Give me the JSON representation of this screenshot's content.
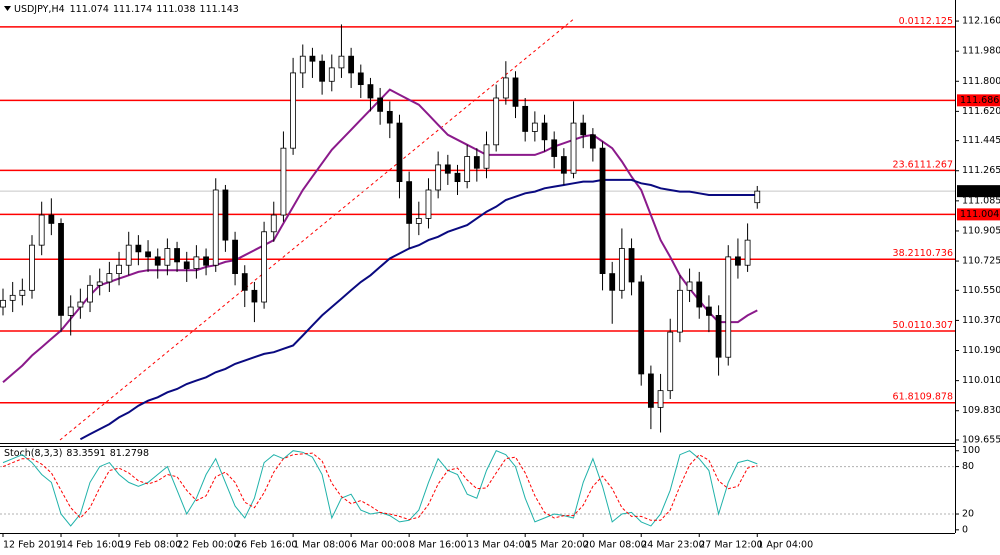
{
  "chart_data": [
    {
      "type": "candlestick",
      "title": "USDJPY,H4",
      "header_values": [
        111.074,
        111.174,
        111.038,
        111.143
      ],
      "categories": [
        "12 Feb 2019",
        null,
        null,
        null,
        null,
        null,
        "14 Feb 16:00",
        null,
        null,
        null,
        null,
        null,
        "19 Feb 08:00",
        null,
        null,
        null,
        null,
        null,
        "22 Feb 00:00",
        null,
        null,
        null,
        null,
        null,
        "26 Feb 16:00",
        null,
        null,
        null,
        null,
        null,
        "1 Mar 08:00",
        null,
        null,
        null,
        null,
        null,
        "6 Mar 00:00",
        null,
        null,
        null,
        null,
        null,
        "8 Mar 16:00",
        null,
        null,
        null,
        null,
        null,
        "13 Mar 04:00",
        null,
        null,
        null,
        null,
        null,
        "15 Mar 20:00",
        null,
        null,
        null,
        null,
        null,
        "20 Mar 08:00",
        null,
        null,
        null,
        null,
        null,
        "24 Mar 23:00",
        null,
        null,
        null,
        null,
        null,
        "27 Mar 12:00",
        null,
        null,
        null,
        null,
        null,
        "1 Apr 04:00"
      ],
      "open": [
        110.45,
        110.49,
        110.52,
        110.55,
        110.82,
        111.0,
        110.95,
        110.4,
        110.45,
        110.48,
        110.58,
        110.6,
        110.65,
        110.7,
        110.82,
        110.78,
        110.75,
        110.7,
        110.8,
        110.72,
        110.68,
        110.75,
        110.7,
        111.15,
        110.85,
        110.65,
        110.55,
        110.48,
        110.9,
        111.0,
        111.4,
        111.85,
        111.95,
        111.92,
        111.8,
        111.88,
        111.95,
        111.85,
        111.78,
        111.7,
        111.62,
        111.55,
        111.2,
        110.95,
        110.98,
        111.15,
        111.3,
        111.25,
        111.2,
        111.35,
        111.28,
        111.42,
        111.7,
        111.82,
        111.65,
        111.5,
        111.55,
        111.45,
        111.35,
        111.25,
        111.55,
        111.48,
        111.4,
        110.65,
        110.55,
        110.8,
        110.6,
        110.05,
        109.85,
        109.95,
        110.3,
        110.55,
        110.6,
        110.45,
        110.4,
        110.15,
        110.75,
        110.7,
        111.074
      ],
      "high": [
        110.56,
        110.6,
        110.62,
        110.88,
        111.08,
        111.1,
        110.98,
        110.52,
        110.56,
        110.64,
        110.68,
        110.72,
        110.78,
        110.9,
        110.88,
        110.85,
        110.8,
        110.86,
        110.84,
        110.78,
        110.82,
        110.8,
        111.22,
        111.18,
        110.9,
        110.7,
        110.6,
        110.96,
        111.08,
        111.5,
        111.94,
        112.02,
        112.0,
        111.96,
        111.96,
        112.14,
        112.0,
        111.9,
        111.82,
        111.76,
        111.68,
        111.6,
        111.26,
        111.08,
        111.22,
        111.38,
        111.36,
        111.3,
        111.42,
        111.4,
        111.5,
        111.78,
        111.92,
        111.86,
        111.7,
        111.62,
        111.6,
        111.5,
        111.4,
        111.68,
        111.6,
        111.52,
        111.44,
        110.72,
        110.92,
        110.86,
        110.64,
        110.1,
        110.05,
        110.38,
        110.64,
        110.68,
        110.66,
        110.52,
        110.46,
        110.82,
        110.86,
        110.95,
        111.174
      ],
      "low": [
        110.4,
        110.42,
        110.46,
        110.5,
        110.76,
        110.88,
        110.3,
        110.28,
        110.38,
        110.42,
        110.52,
        110.54,
        110.58,
        110.64,
        110.7,
        110.66,
        110.62,
        110.64,
        110.66,
        110.6,
        110.62,
        110.64,
        110.66,
        110.78,
        110.58,
        110.45,
        110.36,
        110.44,
        110.84,
        110.96,
        111.36,
        111.76,
        111.82,
        111.72,
        111.74,
        111.82,
        111.76,
        111.7,
        111.62,
        111.54,
        111.46,
        111.1,
        110.8,
        110.88,
        110.92,
        111.1,
        111.18,
        111.12,
        111.16,
        111.2,
        111.22,
        111.38,
        111.66,
        111.58,
        111.44,
        111.44,
        111.38,
        111.28,
        111.18,
        111.22,
        111.4,
        111.32,
        110.55,
        110.35,
        110.5,
        110.52,
        109.98,
        109.72,
        109.7,
        109.9,
        110.24,
        110.48,
        110.38,
        110.3,
        110.04,
        110.1,
        110.62,
        110.66,
        111.038
      ],
      "close": [
        110.49,
        110.52,
        110.55,
        110.82,
        111.0,
        110.95,
        110.4,
        110.45,
        110.48,
        110.58,
        110.6,
        110.65,
        110.7,
        110.82,
        110.78,
        110.75,
        110.7,
        110.8,
        110.72,
        110.68,
        110.75,
        110.7,
        111.15,
        110.85,
        110.65,
        110.55,
        110.48,
        110.9,
        111.0,
        111.4,
        111.85,
        111.95,
        111.92,
        111.8,
        111.88,
        111.95,
        111.85,
        111.78,
        111.7,
        111.62,
        111.55,
        111.2,
        110.95,
        110.98,
        111.15,
        111.3,
        111.25,
        111.2,
        111.35,
        111.28,
        111.42,
        111.7,
        111.82,
        111.65,
        111.5,
        111.55,
        111.45,
        111.35,
        111.25,
        111.55,
        111.48,
        111.4,
        110.65,
        110.55,
        110.8,
        110.6,
        110.05,
        109.85,
        109.95,
        110.3,
        110.55,
        110.6,
        110.45,
        110.4,
        110.15,
        110.75,
        110.7,
        110.85,
        111.143
      ],
      "up_color": "#ffffff",
      "down_color": "#000000",
      "lines": [
        {
          "color": "#8b1a8b",
          "values": [
            110.0,
            110.05,
            110.1,
            110.16,
            110.21,
            110.26,
            110.31,
            110.38,
            110.45,
            110.52,
            110.58,
            110.6,
            110.62,
            110.64,
            110.66,
            110.67,
            110.67,
            110.67,
            110.67,
            110.67,
            110.67,
            110.69,
            110.7,
            110.72,
            110.73,
            110.76,
            110.79,
            110.82,
            110.85,
            110.95,
            111.05,
            111.15,
            111.23,
            111.31,
            111.39,
            111.45,
            111.51,
            111.57,
            111.63,
            111.69,
            111.75,
            111.72,
            111.69,
            111.66,
            111.6,
            111.54,
            111.48,
            111.45,
            111.42,
            111.39,
            111.36,
            111.36,
            111.36,
            111.36,
            111.36,
            111.36,
            111.38,
            111.41,
            111.43,
            111.45,
            111.47,
            111.48,
            111.44,
            111.4,
            111.32,
            111.23,
            111.15,
            111.0,
            110.85,
            110.75,
            110.64,
            110.56,
            110.49,
            110.42,
            110.36,
            110.36,
            110.36,
            110.4,
            110.43
          ]
        },
        {
          "color": "#0a0a80",
          "values": [
            null,
            null,
            null,
            null,
            null,
            null,
            null,
            null,
            109.66,
            109.69,
            109.72,
            109.75,
            109.79,
            109.82,
            109.86,
            109.89,
            109.91,
            109.94,
            109.96,
            109.99,
            110.01,
            110.03,
            110.06,
            110.08,
            110.11,
            110.13,
            110.15,
            110.17,
            110.18,
            110.2,
            110.22,
            110.28,
            110.34,
            110.4,
            110.45,
            110.5,
            110.55,
            110.6,
            110.64,
            110.69,
            110.74,
            110.77,
            110.8,
            110.82,
            110.85,
            110.87,
            110.9,
            110.92,
            110.94,
            110.98,
            111.02,
            111.05,
            111.09,
            111.11,
            111.13,
            111.14,
            111.16,
            111.17,
            111.18,
            111.19,
            111.2,
            111.2,
            111.21,
            111.21,
            111.21,
            111.21,
            111.19,
            111.18,
            111.16,
            111.15,
            111.14,
            111.14,
            111.13,
            111.12,
            111.12,
            111.12,
            111.12,
            111.12,
            111.12
          ]
        }
      ],
      "levels": [
        {
          "level": "0.0",
          "value": 112.125
        },
        {
          "value": 111.686,
          "boxed": true
        },
        {
          "level": "23.6",
          "value": 111.267
        },
        {
          "value": 111.004,
          "boxed": true
        },
        {
          "level": "38.2",
          "value": 110.736
        },
        {
          "level": "50.0",
          "value": 110.307
        },
        {
          "level": "61.8",
          "value": 109.878
        }
      ],
      "level_color": "#ff0000",
      "current_price": 111.143,
      "ylim": [
        109.637,
        112.286
      ],
      "yticks": [
        {
          "value": 112.16,
          "label": "112.160"
        },
        {
          "value": 111.98,
          "label": "111.980"
        },
        {
          "value": 111.8,
          "label": "111.800"
        },
        {
          "value": 111.62,
          "label": "111.620"
        },
        111.445,
        111.265,
        111.085,
        110.905,
        110.725,
        {
          "value": 110.55,
          "label": "110.550"
        },
        {
          "value": 110.37,
          "label": "110.370"
        },
        {
          "value": 110.19,
          "label": "110.190"
        },
        {
          "value": 110.01,
          "label": "110.010"
        },
        {
          "value": 109.83,
          "label": "109.830"
        },
        109.655
      ]
    },
    {
      "type": "line",
      "title": "Stoch(8,3,3)",
      "header_values": [
        83.3591,
        81.2798
      ],
      "series": [
        {
          "color": "#20b2aa",
          "dashed": false,
          "values": [
            85,
            90,
            95,
            85,
            70,
            60,
            20,
            5,
            20,
            60,
            80,
            85,
            70,
            60,
            55,
            60,
            70,
            80,
            50,
            20,
            40,
            70,
            90,
            60,
            30,
            15,
            40,
            85,
            95,
            90,
            100,
            98,
            92,
            70,
            15,
            40,
            45,
            25,
            20,
            22,
            18,
            10,
            12,
            25,
            60,
            90,
            75,
            70,
            45,
            40,
            75,
            100,
            95,
            80,
            40,
            10,
            15,
            20,
            18,
            15,
            60,
            90,
            55,
            10,
            20,
            22,
            10,
            5,
            20,
            50,
            95,
            100,
            90,
            75,
            20,
            60,
            85,
            88,
            83.3591
          ]
        },
        {
          "color": "#ff0000",
          "dashed": true,
          "values": [
            80,
            85,
            90,
            90,
            83,
            72,
            50,
            28,
            15,
            28,
            53,
            75,
            78,
            72,
            62,
            58,
            62,
            70,
            67,
            50,
            37,
            43,
            67,
            73,
            60,
            35,
            28,
            47,
            73,
            90,
            95,
            96,
            97,
            87,
            59,
            42,
            33,
            37,
            30,
            22,
            20,
            17,
            13,
            16,
            32,
            58,
            75,
            78,
            63,
            52,
            53,
            72,
            90,
            92,
            72,
            43,
            22,
            15,
            18,
            18,
            31,
            55,
            68,
            52,
            28,
            17,
            17,
            12,
            12,
            25,
            55,
            82,
            95,
            88,
            62,
            52,
            55,
            78,
            81.2798
          ]
        }
      ],
      "levels": [
        80,
        20
      ],
      "ylim": [
        -4,
        106
      ],
      "yticks": [
        100,
        80,
        20,
        0
      ]
    }
  ]
}
